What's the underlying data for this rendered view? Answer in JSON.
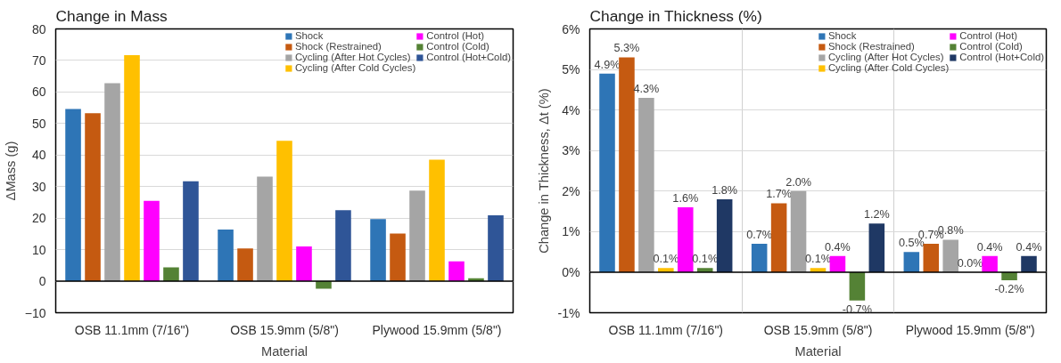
{
  "chart_data": [
    {
      "type": "bar",
      "title": "Change in Mass",
      "xlabel": "Material",
      "ylabel": "ΔMass (g)",
      "categories": [
        "OSB 11.1mm (7/16\")",
        "OSB 15.9mm (5/8\")",
        "Plywood 15.9mm (5/8\")"
      ],
      "series": [
        {
          "name": "Shock",
          "color": "#2e75b6",
          "values": [
            54.6,
            16.4,
            19.7
          ]
        },
        {
          "name": "Shock (Restrained)",
          "color": "#c55a11",
          "values": [
            53.3,
            10.4,
            15.1
          ]
        },
        {
          "name": "Cycling (After Hot Cycles)",
          "color": "#a5a5a5",
          "values": [
            62.8,
            33.2,
            28.7
          ]
        },
        {
          "name": "Cycling (After Cold Cycles)",
          "color": "#ffc000",
          "values": [
            71.7,
            44.5,
            38.5
          ]
        },
        {
          "name": "Control (Hot)",
          "color": "#ff00ff",
          "values": [
            25.5,
            11.0,
            6.3
          ]
        },
        {
          "name": "Control (Cold)",
          "color": "#548235",
          "values": [
            4.4,
            -2.4,
            0.9
          ]
        },
        {
          "name": "Control (Hot+Cold)",
          "color": "#2f5597",
          "values": [
            31.7,
            22.5,
            20.9
          ]
        }
      ],
      "ylim": [
        -10,
        80
      ],
      "yticks": [
        -10,
        0,
        10,
        20,
        30,
        40,
        50,
        60,
        70,
        80
      ],
      "grid": "y",
      "legend": "top"
    },
    {
      "type": "bar",
      "title": "Change in Thickness (%)",
      "xlabel": "Material",
      "ylabel": "Change in Thickness, Δt (%)",
      "categories": [
        "OSB 11.1mm (7/16\")",
        "OSB 15.9mm (5/8\")",
        "Plywood 15.9mm (5/8\")"
      ],
      "series": [
        {
          "name": "Shock",
          "color": "#2e75b6",
          "values": [
            4.9,
            0.7,
            0.5
          ],
          "value_labels": [
            "4.9%",
            "0.7%",
            "0.5%"
          ]
        },
        {
          "name": "Shock (Restrained)",
          "color": "#c55a11",
          "values": [
            5.3,
            1.7,
            0.7
          ],
          "value_labels": [
            "5.3%",
            "1.7%",
            "0.7%"
          ]
        },
        {
          "name": "Cycling (After Hot Cycles)",
          "color": "#a5a5a5",
          "values": [
            4.3,
            2.0,
            0.8
          ],
          "value_labels": [
            "4.3%",
            "2.0%",
            "0.8%"
          ]
        },
        {
          "name": "Cycling (After Cold Cycles)",
          "color": "#ffc000",
          "values": [
            0.1,
            0.1,
            0.0
          ],
          "value_labels": [
            "0.1%",
            "0.1%",
            "0.0%"
          ]
        },
        {
          "name": "Control (Hot)",
          "color": "#ff00ff",
          "values": [
            1.6,
            0.4,
            0.4
          ],
          "value_labels": [
            "1.6%",
            "0.4%",
            "0.4%"
          ]
        },
        {
          "name": "Control (Cold)",
          "color": "#548235",
          "values": [
            0.1,
            -0.7,
            -0.2
          ],
          "value_labels": [
            "0.1%",
            "-0.7%",
            "-0.2%"
          ]
        },
        {
          "name": "Control (Hot+Cold)",
          "color": "#1f3864",
          "values": [
            1.8,
            1.2,
            0.4
          ],
          "value_labels": [
            "1.8%",
            "1.2%",
            "0.4%"
          ]
        }
      ],
      "ylim": [
        -1,
        6
      ],
      "yticks": [
        {
          "value": -1,
          "label": "-1%"
        },
        {
          "value": 0,
          "label": "0%"
        },
        {
          "value": 1,
          "label": "1%"
        },
        {
          "value": 2,
          "label": "2%"
        },
        {
          "value": 3,
          "label": "3%"
        },
        {
          "value": 4,
          "label": "4%"
        },
        {
          "value": 5,
          "label": "5%"
        },
        {
          "value": 6,
          "label": "6%"
        }
      ],
      "grid": true,
      "legend": "top"
    }
  ]
}
